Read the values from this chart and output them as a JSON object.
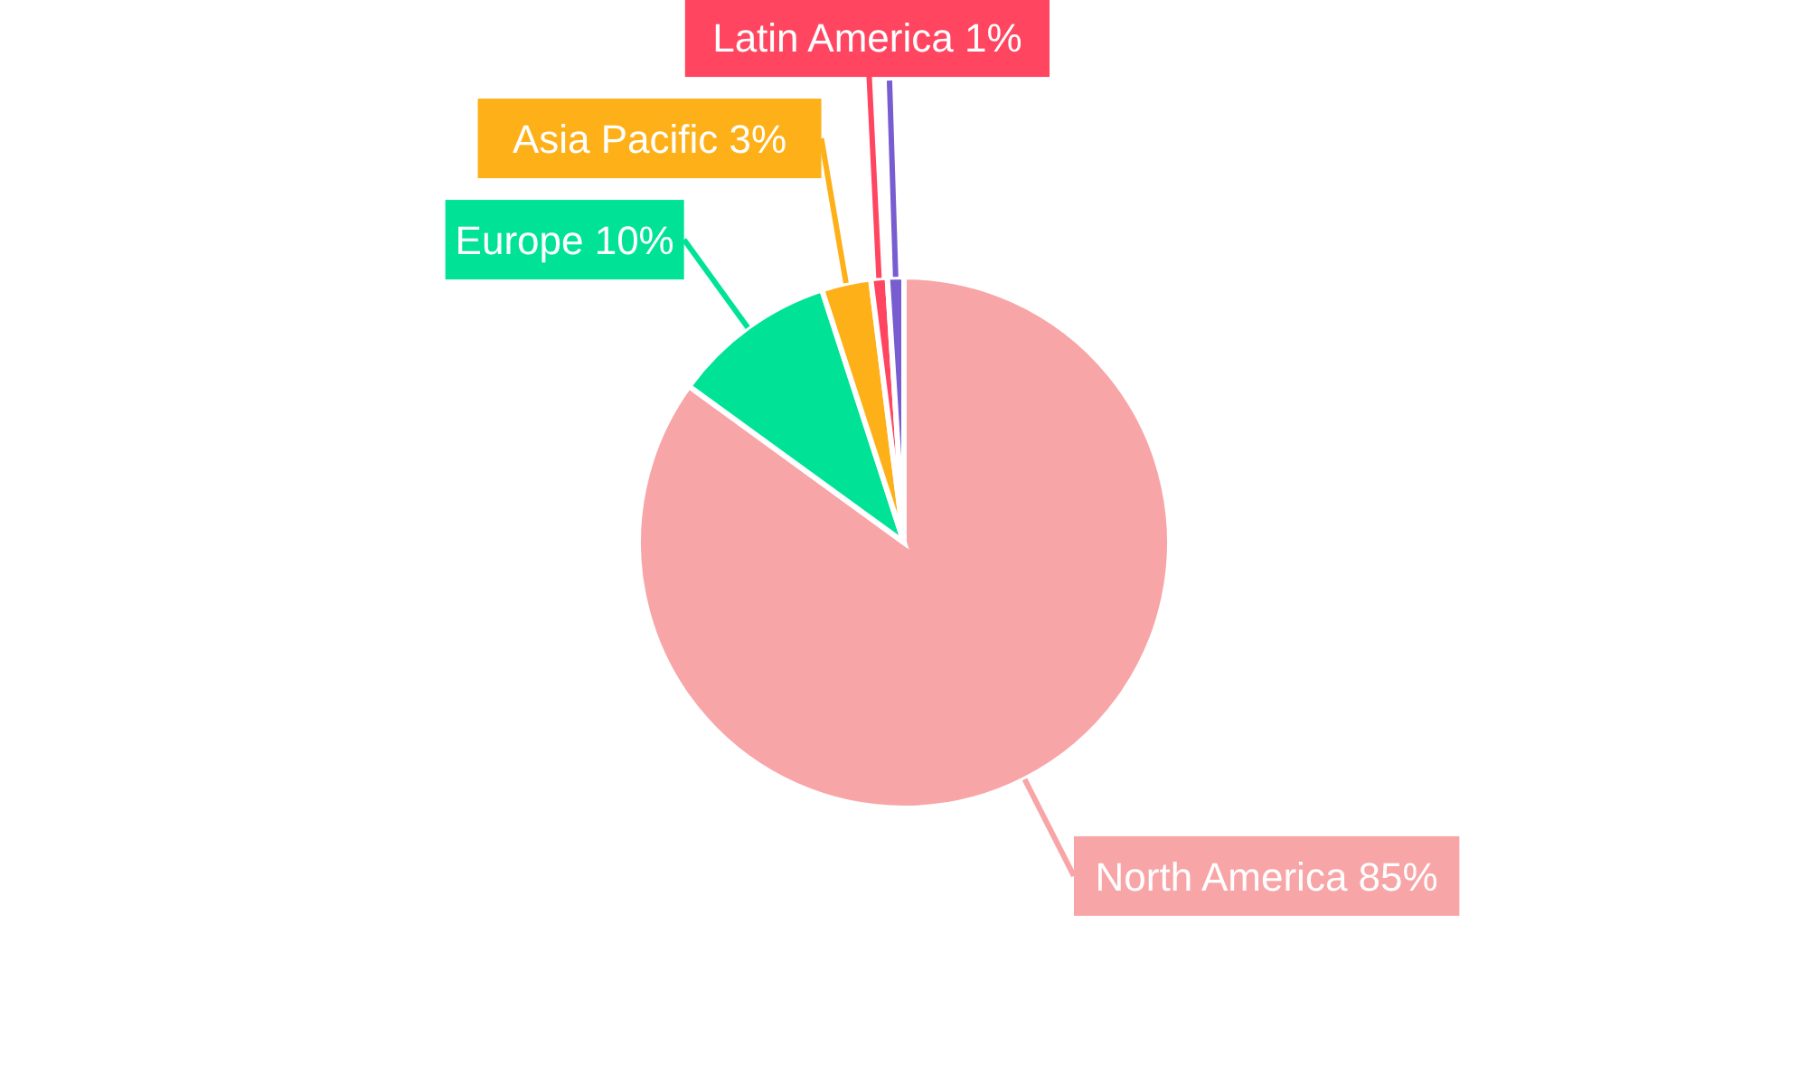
{
  "chart_data": {
    "type": "pie",
    "categories": [
      "North America",
      "Europe",
      "Asia Pacific",
      "Latin America",
      null
    ],
    "values": [
      85,
      10,
      3,
      1,
      1
    ],
    "value_labels": [
      "85%",
      "10%",
      "3%",
      "1%",
      null
    ],
    "colors": [
      "#f8a5a7",
      "#00e396",
      "#feb019",
      "#ff4560",
      "#775dd0"
    ],
    "legend": false
  }
}
